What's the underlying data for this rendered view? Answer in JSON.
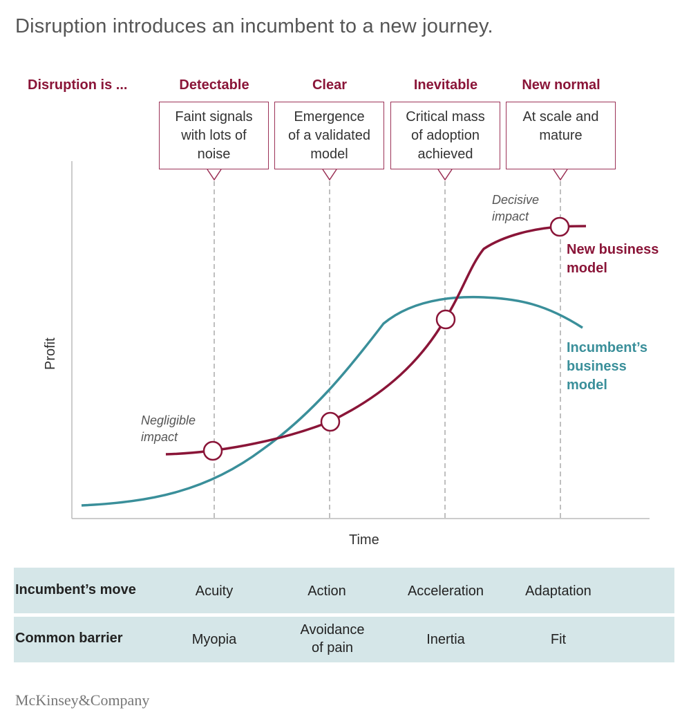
{
  "title": "Disruption introduces an incumbent to a new journey.",
  "stages": {
    "intro": "Disruption is ...",
    "items": [
      {
        "header": "Detectable",
        "desc": "Faint signals\nwith lots of\nnoise"
      },
      {
        "header": "Clear",
        "desc": "Emergence\nof a validated\nmodel"
      },
      {
        "header": "Inevitable",
        "desc": "Critical mass\nof adoption\nachieved"
      },
      {
        "header": "New normal",
        "desc": "At scale and\nmature"
      }
    ]
  },
  "axes": {
    "y": "Profit",
    "x": "Time"
  },
  "annotations": {
    "negligible": "Negligible\nimpact",
    "decisive": "Decisive\nimpact"
  },
  "series": {
    "new": {
      "name": "New business\nmodel",
      "color": "#8a1538"
    },
    "incumbent": {
      "name": "Incumbent’s\nbusiness\nmodel",
      "color": "#3a8f9a"
    }
  },
  "table": {
    "rows": [
      {
        "label": "Incumbent’s move",
        "cells": [
          "Acuity",
          "Action",
          "Acceleration",
          "Adaptation"
        ]
      },
      {
        "label": "Common barrier",
        "cells": [
          "Myopia",
          "Avoidance\nof pain",
          "Inertia",
          "Fit"
        ]
      }
    ]
  },
  "logo": "McKinsey&Company"
}
